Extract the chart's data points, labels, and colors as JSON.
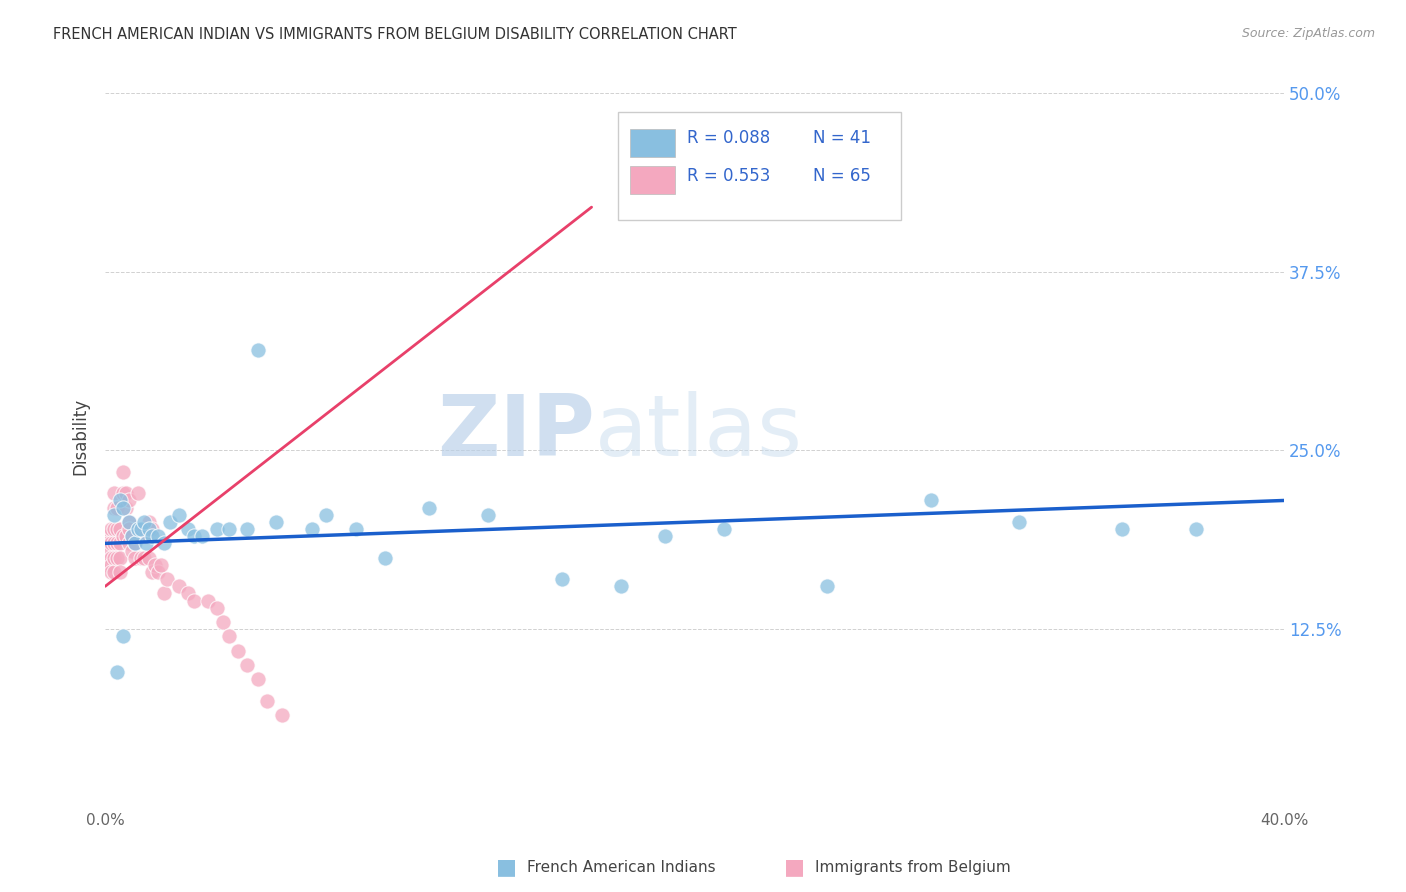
{
  "title": "FRENCH AMERICAN INDIAN VS IMMIGRANTS FROM BELGIUM DISABILITY CORRELATION CHART",
  "source": "Source: ZipAtlas.com",
  "ylabel": "Disability",
  "ytick_labels": [
    "12.5%",
    "25.0%",
    "37.5%",
    "50.0%"
  ],
  "ytick_values": [
    0.125,
    0.25,
    0.375,
    0.5
  ],
  "xlim": [
    0.0,
    0.4
  ],
  "ylim": [
    0.0,
    0.52
  ],
  "legend_blue_r": "R = 0.088",
  "legend_blue_n": "N = 41",
  "legend_pink_r": "R = 0.553",
  "legend_pink_n": "N = 65",
  "legend_label_blue": "French American Indians",
  "legend_label_pink": "Immigrants from Belgium",
  "blue_color": "#89bfe0",
  "pink_color": "#f4a8bf",
  "trendline_blue_color": "#1a5fcc",
  "trendline_pink_color": "#e8406a",
  "watermark_zip": "ZIP",
  "watermark_atlas": "atlas",
  "blue_scatter_x": [
    0.003,
    0.005,
    0.006,
    0.008,
    0.009,
    0.01,
    0.011,
    0.012,
    0.013,
    0.014,
    0.015,
    0.016,
    0.018,
    0.02,
    0.022,
    0.025,
    0.028,
    0.03,
    0.033,
    0.038,
    0.042,
    0.048,
    0.052,
    0.058,
    0.07,
    0.075,
    0.085,
    0.095,
    0.11,
    0.13,
    0.155,
    0.175,
    0.19,
    0.21,
    0.245,
    0.28,
    0.31,
    0.345,
    0.37,
    0.006,
    0.004
  ],
  "blue_scatter_y": [
    0.205,
    0.215,
    0.21,
    0.2,
    0.19,
    0.185,
    0.195,
    0.195,
    0.2,
    0.185,
    0.195,
    0.19,
    0.19,
    0.185,
    0.2,
    0.205,
    0.195,
    0.19,
    0.19,
    0.195,
    0.195,
    0.195,
    0.32,
    0.2,
    0.195,
    0.205,
    0.195,
    0.175,
    0.21,
    0.205,
    0.16,
    0.155,
    0.19,
    0.195,
    0.155,
    0.215,
    0.2,
    0.195,
    0.195,
    0.12,
    0.095
  ],
  "pink_scatter_x": [
    0.001,
    0.001,
    0.001,
    0.001,
    0.002,
    0.002,
    0.002,
    0.002,
    0.002,
    0.003,
    0.003,
    0.003,
    0.003,
    0.003,
    0.003,
    0.004,
    0.004,
    0.004,
    0.004,
    0.005,
    0.005,
    0.005,
    0.005,
    0.006,
    0.006,
    0.006,
    0.007,
    0.007,
    0.007,
    0.008,
    0.008,
    0.008,
    0.008,
    0.009,
    0.009,
    0.01,
    0.01,
    0.011,
    0.011,
    0.012,
    0.012,
    0.013,
    0.013,
    0.014,
    0.015,
    0.015,
    0.016,
    0.016,
    0.017,
    0.018,
    0.019,
    0.02,
    0.021,
    0.025,
    0.028,
    0.03,
    0.035,
    0.038,
    0.04,
    0.042,
    0.045,
    0.048,
    0.052,
    0.055,
    0.06
  ],
  "pink_scatter_y": [
    0.19,
    0.185,
    0.18,
    0.17,
    0.195,
    0.185,
    0.175,
    0.17,
    0.165,
    0.22,
    0.21,
    0.195,
    0.185,
    0.175,
    0.165,
    0.21,
    0.195,
    0.185,
    0.175,
    0.195,
    0.185,
    0.175,
    0.165,
    0.235,
    0.22,
    0.19,
    0.22,
    0.21,
    0.19,
    0.215,
    0.2,
    0.195,
    0.185,
    0.19,
    0.18,
    0.185,
    0.175,
    0.22,
    0.195,
    0.195,
    0.175,
    0.195,
    0.175,
    0.19,
    0.2,
    0.175,
    0.195,
    0.165,
    0.17,
    0.165,
    0.17,
    0.15,
    0.16,
    0.155,
    0.15,
    0.145,
    0.145,
    0.14,
    0.13,
    0.12,
    0.11,
    0.1,
    0.09,
    0.075,
    0.065
  ],
  "pink_trendline_x0": 0.0,
  "pink_trendline_y0": 0.155,
  "pink_trendline_x1": 0.165,
  "pink_trendline_y1": 0.42,
  "blue_trendline_x0": 0.0,
  "blue_trendline_y0": 0.185,
  "blue_trendline_x1": 0.4,
  "blue_trendline_y1": 0.215
}
